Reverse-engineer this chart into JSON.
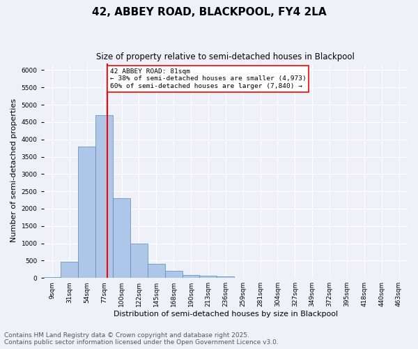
{
  "title1": "42, ABBEY ROAD, BLACKPOOL, FY4 2LA",
  "title2": "Size of property relative to semi-detached houses in Blackpool",
  "xlabel": "Distribution of semi-detached houses by size in Blackpool",
  "ylabel": "Number of semi-detached properties",
  "bin_labels": [
    "9sqm",
    "31sqm",
    "54sqm",
    "77sqm",
    "100sqm",
    "122sqm",
    "145sqm",
    "168sqm",
    "190sqm",
    "213sqm",
    "236sqm",
    "259sqm",
    "281sqm",
    "304sqm",
    "327sqm",
    "349sqm",
    "372sqm",
    "395sqm",
    "418sqm",
    "440sqm",
    "463sqm"
  ],
  "bar_values": [
    30,
    460,
    3800,
    4700,
    2300,
    1000,
    400,
    200,
    80,
    60,
    50,
    0,
    0,
    0,
    0,
    0,
    0,
    0,
    0,
    0,
    0
  ],
  "bar_color": "#aec6e8",
  "bar_edge_color": "#5588bb",
  "vline_x": 3,
  "vline_color": "red",
  "annotation_title": "42 ABBEY ROAD: 81sqm",
  "annotation_line1": "← 38% of semi-detached houses are smaller (4,973)",
  "annotation_line2": "60% of semi-detached houses are larger (7,840) →",
  "annotation_box_color": "white",
  "annotation_edge_color": "red",
  "ylim": [
    0,
    6200
  ],
  "yticks": [
    0,
    500,
    1000,
    1500,
    2000,
    2500,
    3000,
    3500,
    4000,
    4500,
    5000,
    5500,
    6000
  ],
  "footer1": "Contains HM Land Registry data © Crown copyright and database right 2025.",
  "footer2": "Contains public sector information licensed under the Open Government Licence v3.0.",
  "bg_color": "#eef2f8",
  "grid_color": "white",
  "title1_fontsize": 11,
  "title2_fontsize": 8.5,
  "xlabel_fontsize": 8,
  "ylabel_fontsize": 8,
  "tick_fontsize": 6.5,
  "footer_fontsize": 6.5
}
